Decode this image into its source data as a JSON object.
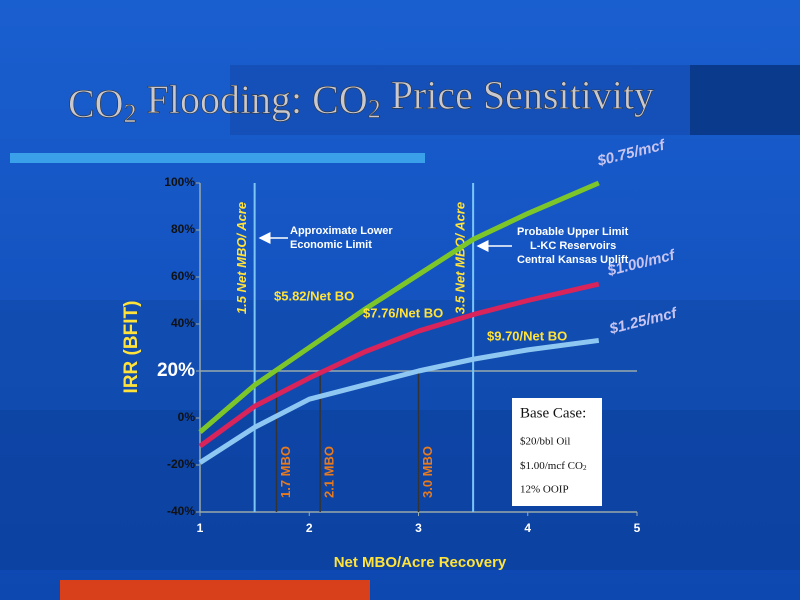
{
  "title_parts": [
    "CO",
    "2",
    " Flooding: CO",
    "2",
    " Price Sensitivity"
  ],
  "chart_data": {
    "type": "line",
    "x": [
      1,
      1.5,
      2,
      2.5,
      3,
      3.5,
      4,
      4.65
    ],
    "series": [
      {
        "name": "$0.75/mcf",
        "color": "#7cc62a",
        "values": [
          -6,
          14,
          30,
          46,
          61,
          76,
          87,
          100
        ]
      },
      {
        "name": "$1.00/mcf",
        "color": "#d8245a",
        "values": [
          -12,
          5,
          17,
          28,
          37,
          44,
          50,
          57
        ]
      },
      {
        "name": "$1.25/mcf",
        "color": "#8ec8f2",
        "values": [
          -19,
          -4,
          8,
          14,
          20,
          25,
          29,
          33
        ]
      }
    ],
    "xlim": [
      1,
      5
    ],
    "xticks": [
      1,
      2,
      3,
      4,
      5
    ],
    "ylim": [
      -40,
      100
    ],
    "yticks": [
      {
        "value": -40,
        "label": "-40%"
      },
      {
        "value": -20,
        "label": "-20%"
      },
      {
        "value": 0,
        "label": "0%"
      },
      {
        "value": 20,
        "label": "20%"
      },
      {
        "value": 40,
        "label": "40%"
      },
      {
        "value": 60,
        "label": "60%"
      },
      {
        "value": 80,
        "label": "80%"
      },
      {
        "value": 100,
        "label": "100%"
      }
    ],
    "reference_line": 20,
    "ylabel": "IRR (BFIT)",
    "xlabel": "Net MBO/Acre Recovery",
    "limit_lines": [
      {
        "x": 1.5,
        "label": "1.5 Net MBO/ Acre"
      },
      {
        "x": 3.5,
        "label": "3.5 Net MBO/ Acre"
      }
    ],
    "drop_lines": [
      {
        "x": 1.7,
        "label": "1.7 MBO"
      },
      {
        "x": 2.1,
        "label": "2.1 MBO"
      },
      {
        "x": 3.0,
        "label": "3.0 MBO"
      }
    ],
    "annotations": {
      "lower_limit": [
        "Approximate Lower",
        "Economic Limit"
      ],
      "upper_limit": [
        "Probable Upper Limit",
        "L-KC Reservoirs",
        "Central Kansas Uplift"
      ],
      "prices": [
        "$5.82/Net BO",
        "$7.76/Net BO",
        "$9.70/Net BO"
      ]
    },
    "base_case": {
      "title": "Base Case:",
      "lines": [
        "$20/bbl Oil",
        "12% OOIP"
      ],
      "co2_parts": [
        "$1.00/mcf CO",
        "2"
      ]
    }
  }
}
